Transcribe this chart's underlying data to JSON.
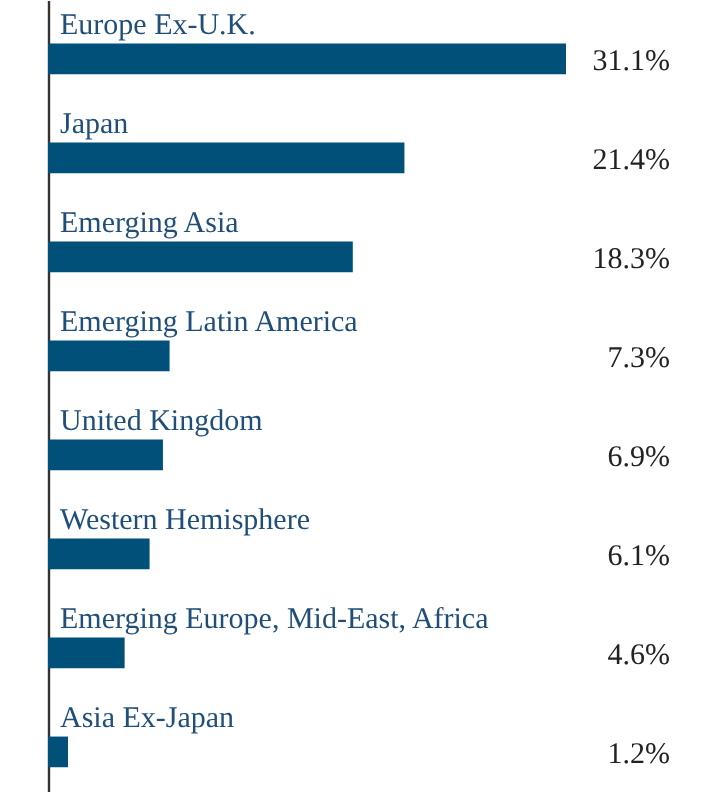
{
  "chart_data": {
    "type": "bar",
    "orientation": "horizontal",
    "categories": [
      "Europe Ex-U.K.",
      "Japan",
      "Emerging Asia",
      "Emerging Latin America",
      "United Kingdom",
      "Western Hemisphere",
      "Emerging Europe, Mid-East, Africa",
      "Asia Ex-Japan"
    ],
    "values": [
      31.1,
      21.4,
      18.3,
      7.3,
      6.9,
      6.1,
      4.6,
      1.2
    ],
    "value_labels": [
      "31.1%",
      "21.4%",
      "18.3%",
      "7.3%",
      "6.9%",
      "6.1%",
      "4.6%",
      "1.2%"
    ],
    "color": "#00507a",
    "grid": false
  }
}
